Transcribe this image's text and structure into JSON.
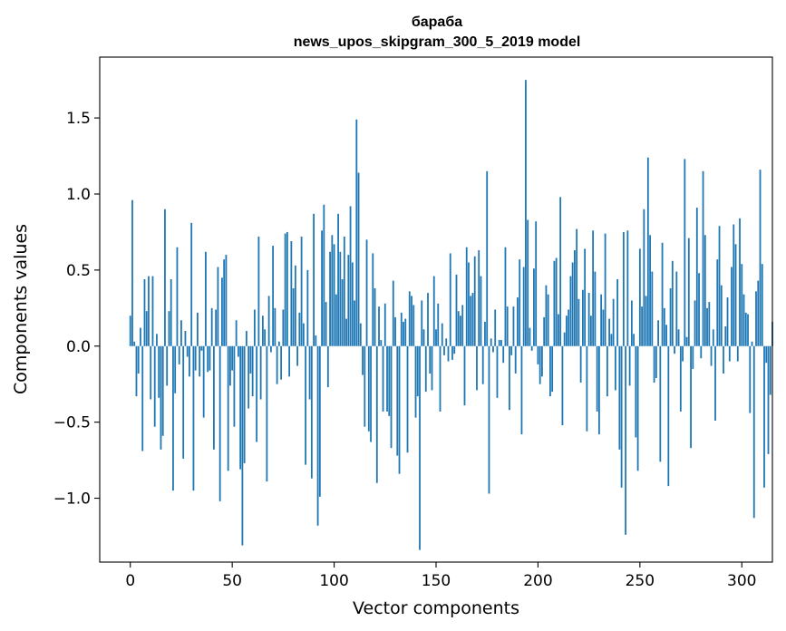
{
  "chart_data": {
    "type": "bar",
    "title": "бараба",
    "subtitle": "news_upos_skipgram_300_5_2019 model",
    "xlabel": "Vector components",
    "ylabel": "Components values",
    "xlim": [
      -15,
      315
    ],
    "ylim": [
      -1.42,
      1.9
    ],
    "xticks": [
      0,
      50,
      100,
      150,
      200,
      250,
      300
    ],
    "xtick_labels": [
      "0",
      "50",
      "100",
      "150",
      "200",
      "250",
      "300"
    ],
    "yticks": [
      -1.0,
      -0.5,
      0.0,
      0.5,
      1.0,
      1.5
    ],
    "ytick_labels": [
      "−1.0",
      "−0.5",
      "0.0",
      "0.5",
      "1.0",
      "1.5"
    ],
    "bar_color": "#1f77b4",
    "grid": false,
    "values": [
      0.2,
      0.96,
      0.03,
      -0.33,
      -0.18,
      0.12,
      -0.69,
      0.44,
      0.23,
      0.46,
      -0.35,
      0.46,
      -0.53,
      0.08,
      -0.34,
      -0.68,
      -0.59,
      0.9,
      -0.26,
      0.23,
      0.44,
      -0.95,
      -0.31,
      0.65,
      -0.12,
      0.17,
      -0.74,
      0.1,
      -0.07,
      -0.2,
      0.81,
      -0.95,
      -0.16,
      0.22,
      -0.2,
      -0.03,
      -0.47,
      0.62,
      -0.17,
      -0.16,
      0.25,
      -0.68,
      0.24,
      0.52,
      -1.02,
      0.45,
      0.57,
      0.6,
      -0.82,
      -0.26,
      -0.16,
      -0.53,
      0.17,
      -0.07,
      -0.81,
      -1.31,
      -0.77,
      0.1,
      -0.41,
      -0.18,
      -0.33,
      0.24,
      -0.63,
      0.72,
      -0.35,
      0.2,
      0.11,
      -0.89,
      0.33,
      -0.04,
      0.66,
      0.25,
      -0.25,
      0.03,
      -0.22,
      0.24,
      0.74,
      0.75,
      -0.2,
      0.69,
      0.38,
      0.53,
      -0.13,
      0.22,
      0.72,
      0.15,
      -0.78,
      0.5,
      -0.35,
      -0.87,
      0.87,
      0.07,
      -1.18,
      -0.99,
      0.76,
      0.93,
      0.29,
      -0.27,
      0.62,
      0.73,
      0.67,
      0.34,
      0.87,
      0.62,
      0.44,
      0.72,
      0.18,
      0.6,
      0.92,
      0.55,
      0.3,
      1.49,
      1.14,
      0.15,
      -0.19,
      -0.53,
      0.7,
      -0.56,
      -0.63,
      0.61,
      0.38,
      -0.9,
      0.26,
      0.04,
      -0.43,
      0.28,
      -0.43,
      -0.46,
      -0.67,
      0.43,
      0.19,
      -0.72,
      -0.84,
      0.22,
      0.16,
      0.18,
      -0.7,
      0.36,
      0.33,
      0.27,
      -0.47,
      -0.33,
      -1.34,
      0.3,
      0.11,
      -0.3,
      0.35,
      -0.18,
      -0.29,
      0.46,
      0.11,
      0.28,
      -0.43,
      0.15,
      -0.06,
      0.05,
      -0.1,
      0.61,
      -0.09,
      -0.05,
      0.47,
      0.23,
      0.2,
      0.27,
      -0.39,
      0.65,
      0.55,
      0.33,
      0.35,
      0.59,
      -0.29,
      0.63,
      0.46,
      -0.25,
      0.16,
      1.15,
      -0.97,
      0.05,
      -0.04,
      0.24,
      -0.34,
      0.04,
      0.04,
      -0.11,
      0.65,
      0.26,
      -0.42,
      -0.06,
      0.26,
      -0.18,
      0.32,
      0.57,
      -0.58,
      0.52,
      1.75,
      0.83,
      0.12,
      -0.03,
      0.51,
      0.82,
      -0.12,
      -0.25,
      -0.2,
      0.19,
      0.4,
      0.34,
      -0.33,
      -0.3,
      0.56,
      0.58,
      0.21,
      0.98,
      -0.52,
      0.09,
      0.2,
      0.24,
      0.46,
      0.55,
      0.63,
      0.77,
      0.31,
      -0.24,
      0.37,
      0.64,
      -0.56,
      0.35,
      0.2,
      0.76,
      0.49,
      -0.43,
      -0.58,
      0.34,
      0.24,
      0.74,
      -0.33,
      0.18,
      0.08,
      0.31,
      -0.29,
      0.44,
      -0.68,
      -0.93,
      0.75,
      -1.24,
      0.76,
      -0.26,
      0.3,
      0.08,
      -0.6,
      -0.82,
      0.64,
      0.26,
      0.9,
      0.33,
      1.24,
      0.73,
      0.49,
      -0.24,
      -0.21,
      0.17,
      -0.76,
      0.68,
      0.25,
      0.14,
      -0.92,
      0.38,
      0.56,
      -0.05,
      0.49,
      0.11,
      -0.43,
      -0.1,
      1.23,
      0.06,
      0.71,
      -0.67,
      -0.15,
      0.3,
      0.91,
      0.48,
      -0.08,
      1.15,
      0.73,
      0.25,
      0.29,
      -0.13,
      0.11,
      -0.49,
      0.57,
      0.79,
      0.4,
      -0.18,
      0.13,
      0.32,
      -0.1,
      0.52,
      0.8,
      0.67,
      -0.1,
      0.84,
      0.54,
      0.34,
      0.22,
      0.21,
      -0.44,
      0.03,
      -1.13,
      0.36,
      0.43,
      1.16,
      0.54,
      -0.93,
      -0.11,
      -0.71,
      -0.32,
      0.16
    ]
  }
}
